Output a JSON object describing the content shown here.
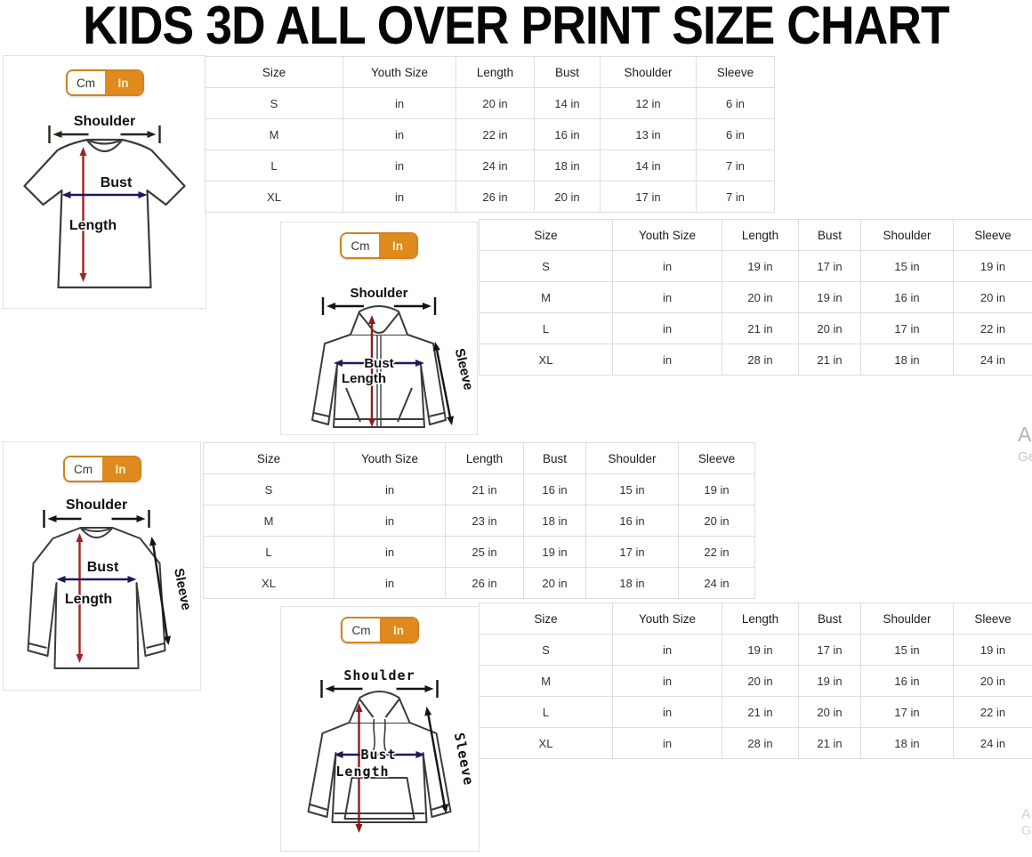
{
  "title": "KIDS 3D ALL OVER PRINT SIZE CHART",
  "toggle": {
    "cm_label": "Cm",
    "in_label": "In"
  },
  "labels": {
    "shoulder": "Shoulder",
    "bust": "Bust",
    "length": "Length",
    "sleeve": "Sleeve"
  },
  "colors": {
    "accent_orange": "#E0891D",
    "length_arrow_red": "#9E2424",
    "hoodie_length_red": "#8D1B1B",
    "bust_arrow_navy": "#1B1B5C",
    "arrow_black": "#141414",
    "table_border": "#DDDDDD"
  },
  "watermarks": {
    "side_line1": "A",
    "side_line2": "Ge",
    "bottom_line1": "A",
    "bottom_line2": "G"
  },
  "tables": {
    "headers": [
      "Size",
      "Youth Size",
      "Length",
      "Bust",
      "Shoulder",
      "Sleeve"
    ],
    "tshirt": {
      "rows": [
        [
          "S",
          "in",
          "20 in",
          "14 in",
          "12 in",
          "6 in"
        ],
        [
          "M",
          "in",
          "22 in",
          "16 in",
          "13 in",
          "6 in"
        ],
        [
          "L",
          "in",
          "24 in",
          "18 in",
          "14 in",
          "7 in"
        ],
        [
          "XL",
          "in",
          "26 in",
          "20 in",
          "17 in",
          "7 in"
        ]
      ]
    },
    "zip_hoodie": {
      "rows": [
        [
          "S",
          "in",
          "19 in",
          "17 in",
          "15 in",
          "19 in"
        ],
        [
          "M",
          "in",
          "20 in",
          "19 in",
          "16 in",
          "20 in"
        ],
        [
          "L",
          "in",
          "21 in",
          "20 in",
          "17 in",
          "22 in"
        ],
        [
          "XL",
          "in",
          "28 in",
          "21 in",
          "18 in",
          "24 in"
        ]
      ]
    },
    "long_sleeve": {
      "rows": [
        [
          "S",
          "in",
          "21 in",
          "16 in",
          "15 in",
          "19 in"
        ],
        [
          "M",
          "in",
          "23 in",
          "18 in",
          "16 in",
          "20 in"
        ],
        [
          "L",
          "in",
          "25 in",
          "19 in",
          "17 in",
          "22 in"
        ],
        [
          "XL",
          "in",
          "26 in",
          "20 in",
          "18 in",
          "24 in"
        ]
      ]
    },
    "hoodie": {
      "rows": [
        [
          "S",
          "in",
          "19 in",
          "17 in",
          "15 in",
          "19 in"
        ],
        [
          "M",
          "in",
          "20 in",
          "19 in",
          "16 in",
          "20 in"
        ],
        [
          "L",
          "in",
          "21 in",
          "20 in",
          "17 in",
          "22 in"
        ],
        [
          "XL",
          "in",
          "28 in",
          "21 in",
          "18 in",
          "24 in"
        ]
      ]
    }
  }
}
